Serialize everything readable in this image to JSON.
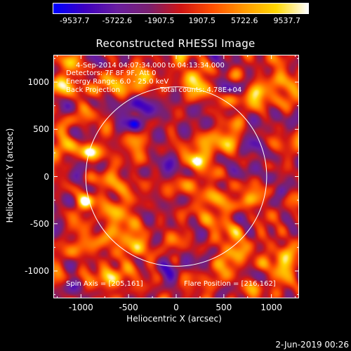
{
  "title": "Reconstructed RHESSI Image",
  "colorbar": {
    "labels": [
      "-9537.7",
      "-5722.6",
      "-1907.5",
      "1907.5",
      "5722.6",
      "9537.7"
    ],
    "stops": [
      "#0000ff",
      "#4000c0",
      "#6a1fa0",
      "#7a2070",
      "#d01515",
      "#ff5000",
      "#ff9a00",
      "#ffd800",
      "#ffffff"
    ]
  },
  "info": {
    "time": "4-Sep-2014 04:07:34.000 to 04:13:34.000",
    "detectors": "Detectors: 7F 8F 9F, Att 0",
    "energy": "Energy Range: 6.0 - 25.0 keV",
    "method": "Back Projection",
    "counts": "Total counts: 4.78E+04",
    "spin_axis": "Spin Axis = [205,161]",
    "flare_position": "Flare Position = [216,162]"
  },
  "footer_date": "2-Jun-2019 00:26",
  "chart_data": {
    "type": "heatmap",
    "title": "Reconstructed RHESSI Image",
    "xlabel": "Heliocentric X (arcsec)",
    "ylabel": "Heliocentric Y (arcsec)",
    "xlim": [
      -1290,
      1290
    ],
    "ylim": [
      -1290,
      1290
    ],
    "xticks": [
      -1000,
      -500,
      0,
      500,
      1000
    ],
    "yticks": [
      -1000,
      -500,
      0,
      500,
      1000
    ],
    "colorbar_range": [
      -9537.7,
      9537.7
    ],
    "solar_disk_radius": 950,
    "flare_position": [
      216,
      162
    ],
    "bright_sources": [
      {
        "x": 216,
        "y": 162,
        "intensity": 8500
      },
      {
        "x": -950,
        "y": -260,
        "intensity": 9500
      },
      {
        "x": -920,
        "y": 260,
        "intensity": 7500
      },
      {
        "x": 770,
        "y": -250,
        "intensity": 5500
      },
      {
        "x": -950,
        "y": 750,
        "intensity": 5000
      },
      {
        "x": -420,
        "y": -780,
        "intensity": 4800
      },
      {
        "x": 0,
        "y": -880,
        "intensity": 4500
      },
      {
        "x": 850,
        "y": 900,
        "intensity": 4500
      }
    ],
    "dark_sources": [
      {
        "x": -440,
        "y": 560,
        "intensity": -9000
      },
      {
        "x": 1100,
        "y": -150,
        "intensity": -7500
      }
    ]
  }
}
